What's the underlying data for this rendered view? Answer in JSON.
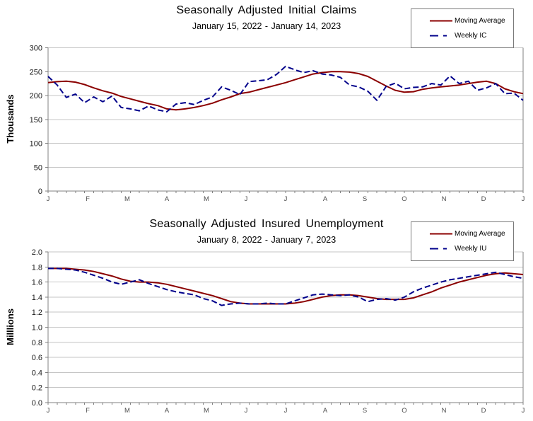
{
  "page": {
    "background": "#ffffff",
    "grid_color": "#c6c6c6",
    "axis_color": "#808080",
    "tick_label_color": "#1a1a1a",
    "month_label_color": "#4d4d4d"
  },
  "chart_data": [
    {
      "id": "initial-claims",
      "type": "line",
      "title": "Seasonally Adjusted Initial Claims",
      "subtitle": "January 15, 2022 - January 14, 2023",
      "ylabel": "Thousands",
      "xlabel": "",
      "ylim": [
        0,
        300
      ],
      "yticks": [
        "0",
        "50",
        "100",
        "150",
        "200",
        "250",
        "300"
      ],
      "x_tick_labels": [
        "J",
        "F",
        "M",
        "A",
        "M",
        "J",
        "J",
        "A",
        "S",
        "O",
        "N",
        "D",
        "J"
      ],
      "grid": true,
      "legend_position": "top-right",
      "series": [
        {
          "name": "Moving Average",
          "color": "#8B0000",
          "line": "solid",
          "values": [
            227,
            229,
            230,
            228,
            223,
            216,
            210,
            205,
            198,
            193,
            188,
            183,
            179,
            172,
            170,
            172,
            175,
            179,
            184,
            191,
            197,
            204,
            207,
            212,
            217,
            222,
            227,
            233,
            239,
            245,
            248,
            250,
            250,
            249,
            246,
            240,
            230,
            220,
            211,
            207,
            208,
            213,
            216,
            218,
            220,
            222,
            225,
            228,
            230,
            225,
            214,
            208,
            204
          ]
        },
        {
          "name": "Weekly IC",
          "color": "#00008B",
          "line": "dashed",
          "values": [
            240,
            222,
            196,
            203,
            185,
            197,
            187,
            199,
            175,
            172,
            168,
            178,
            170,
            166,
            182,
            185,
            181,
            190,
            197,
            218,
            211,
            202,
            229,
            231,
            233,
            244,
            261,
            254,
            248,
            252,
            245,
            243,
            238,
            222,
            218,
            209,
            190,
            219,
            226,
            214,
            217,
            218,
            225,
            222,
            241,
            225,
            230,
            211,
            216,
            225,
            204,
            205,
            190
          ]
        }
      ]
    },
    {
      "id": "insured-unemployment",
      "type": "line",
      "title": "Seasonally Adjusted Insured Unemployment",
      "subtitle": "January 8, 2022 - January 7, 2023",
      "ylabel": "Milllions",
      "xlabel": "",
      "ylim": [
        0,
        2.0
      ],
      "yticks": [
        "0.0",
        "0.2",
        "0.4",
        "0.6",
        "0.8",
        "1.0",
        "1.2",
        "1.4",
        "1.6",
        "1.8",
        "2.0"
      ],
      "x_tick_labels": [
        "J",
        "F",
        "M",
        "A",
        "M",
        "J",
        "J",
        "A",
        "S",
        "O",
        "N",
        "D",
        "J"
      ],
      "grid": true,
      "legend_position": "top-right",
      "series": [
        {
          "name": "Moving Average",
          "color": "#8B0000",
          "line": "solid",
          "values": [
            1.78,
            1.78,
            1.78,
            1.77,
            1.76,
            1.74,
            1.71,
            1.68,
            1.64,
            1.61,
            1.6,
            1.6,
            1.59,
            1.57,
            1.54,
            1.51,
            1.48,
            1.45,
            1.42,
            1.38,
            1.34,
            1.32,
            1.31,
            1.31,
            1.31,
            1.31,
            1.31,
            1.32,
            1.34,
            1.37,
            1.4,
            1.42,
            1.43,
            1.43,
            1.42,
            1.4,
            1.38,
            1.37,
            1.37,
            1.37,
            1.39,
            1.43,
            1.47,
            1.52,
            1.56,
            1.6,
            1.63,
            1.66,
            1.69,
            1.71,
            1.72,
            1.71,
            1.7
          ]
        },
        {
          "name": "Weekly IU",
          "color": "#00008B",
          "line": "dashed",
          "values": [
            1.78,
            1.78,
            1.77,
            1.76,
            1.73,
            1.69,
            1.65,
            1.6,
            1.57,
            1.6,
            1.63,
            1.58,
            1.54,
            1.5,
            1.47,
            1.45,
            1.43,
            1.38,
            1.35,
            1.29,
            1.31,
            1.32,
            1.31,
            1.31,
            1.32,
            1.31,
            1.31,
            1.35,
            1.39,
            1.43,
            1.44,
            1.43,
            1.42,
            1.43,
            1.4,
            1.34,
            1.37,
            1.38,
            1.36,
            1.4,
            1.47,
            1.52,
            1.56,
            1.6,
            1.63,
            1.65,
            1.67,
            1.69,
            1.71,
            1.73,
            1.7,
            1.67,
            1.65
          ]
        }
      ]
    }
  ]
}
